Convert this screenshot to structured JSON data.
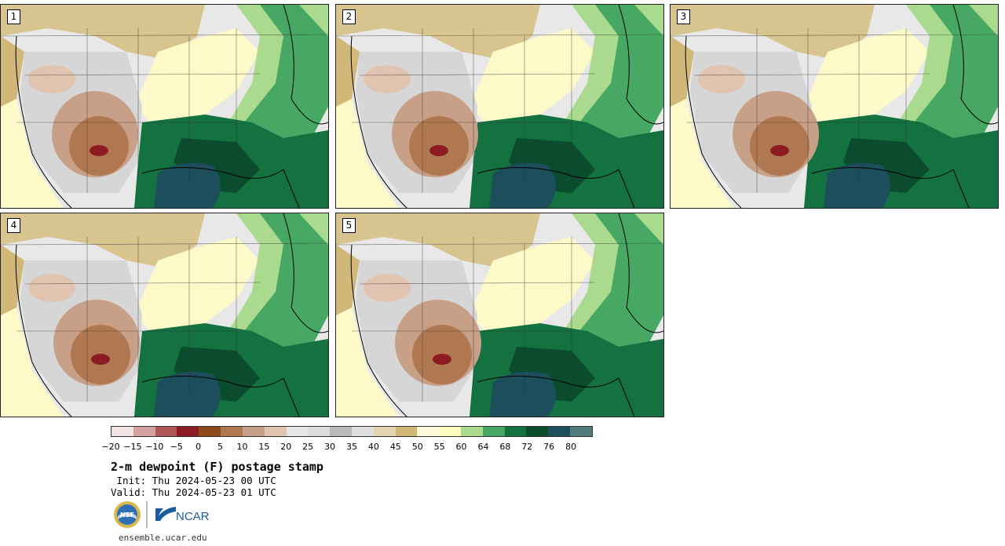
{
  "panels": [
    {
      "label": "1"
    },
    {
      "label": "2"
    },
    {
      "label": "3"
    },
    {
      "label": "4"
    },
    {
      "label": "5"
    }
  ],
  "colorbar": {
    "colors": [
      "#f2e4e4",
      "#d4a0a0",
      "#b05858",
      "#8c1c24",
      "#8e4a1a",
      "#b07850",
      "#c8a088",
      "#e0c4b0",
      "#e6e6e6",
      "#dcdcdc",
      "#b9b9b9",
      "#dedede",
      "#e2d4b0",
      "#d2b878",
      "#fff9dc",
      "#fdfdc0",
      "#a9da8e",
      "#46a862",
      "#137240",
      "#0c4c2e",
      "#1c4e5c",
      "#517c7c"
    ],
    "ticks": [
      "−20",
      "−15",
      "−10",
      "−5",
      "0",
      "5",
      "10",
      "15",
      "20",
      "25",
      "30",
      "35",
      "40",
      "45",
      "50",
      "55",
      "60",
      "64",
      "68",
      "72",
      "76",
      "80"
    ]
  },
  "title": "2-m dewpoint (F) postage stamp",
  "init": " Init: Thu 2024-05-23 00 UTC",
  "valid": "Valid: Thu 2024-05-23 01 UTC",
  "logos": {
    "nsf": "NSF",
    "ncar": "NCAR"
  },
  "site": "ensemble.ucar.edu"
}
